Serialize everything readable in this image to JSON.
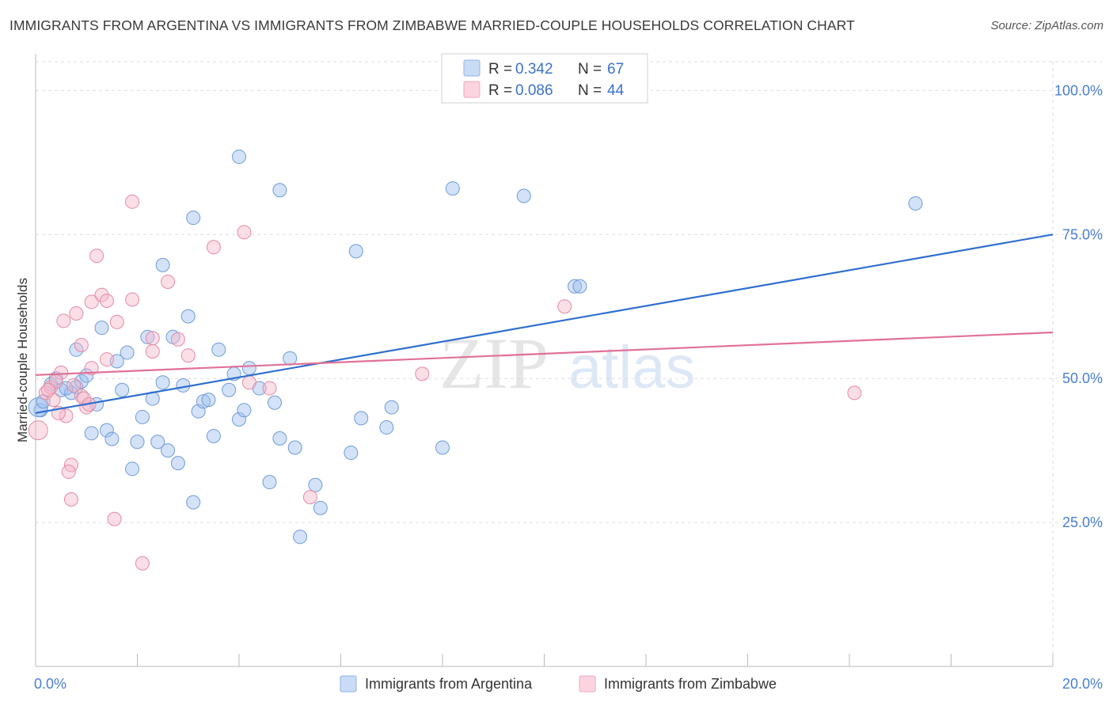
{
  "header": {
    "title": "IMMIGRANTS FROM ARGENTINA VS IMMIGRANTS FROM ZIMBABWE MARRIED-COUPLE HOUSEHOLDS CORRELATION CHART",
    "source": "Source: ZipAtlas.com"
  },
  "watermark": {
    "zip": "ZIP",
    "atlas": "atlas"
  },
  "legend": {
    "rows": [
      {
        "r_label": "R =",
        "r_value": "0.342",
        "n_label": "N =",
        "n_value": "67",
        "color": "#9dbfee"
      },
      {
        "r_label": "R =",
        "r_value": "0.086",
        "n_label": "N =",
        "n_value": "44",
        "color": "#f4b8c9"
      }
    ]
  },
  "chart_data": {
    "type": "scatter",
    "title": "IMMIGRANTS FROM ARGENTINA VS IMMIGRANTS FROM ZIMBABWE MARRIED-COUPLE HOUSEHOLDS CORRELATION CHART",
    "xlabel": "",
    "ylabel": "Married-couple Households",
    "xlim": [
      0,
      20
    ],
    "ylim": [
      0,
      105
    ],
    "x_tick_labels": [
      "0.0%",
      "20.0%"
    ],
    "y_ticks": [
      25,
      50,
      75,
      100
    ],
    "y_tick_labels": [
      "25.0%",
      "50.0%",
      "75.0%",
      "100.0%"
    ],
    "grid": true,
    "legend_position": "top-center",
    "series": [
      {
        "name": "Immigrants from Argentina",
        "color": "#9dbfee",
        "stroke": "#6f9bd8",
        "trend_color": "#2f6fcf",
        "trend": {
          "x": [
            0,
            20
          ],
          "y": [
            44.0,
            75.0
          ]
        },
        "points": [
          [
            0.1,
            44.5
          ],
          [
            0.3,
            49.0
          ],
          [
            0.5,
            48.0
          ],
          [
            0.8,
            48.5
          ],
          [
            0.4,
            50.0
          ],
          [
            0.7,
            47.5
          ],
          [
            0.9,
            49.5
          ],
          [
            1.0,
            50.5
          ],
          [
            0.8,
            55.0
          ],
          [
            1.2,
            45.5
          ],
          [
            1.3,
            58.8
          ],
          [
            1.4,
            41.0
          ],
          [
            1.1,
            40.5
          ],
          [
            1.5,
            39.5
          ],
          [
            1.6,
            53.0
          ],
          [
            1.7,
            48.0
          ],
          [
            1.8,
            54.5
          ],
          [
            1.9,
            34.3
          ],
          [
            2.0,
            39.0
          ],
          [
            2.1,
            43.3
          ],
          [
            2.2,
            57.2
          ],
          [
            2.3,
            46.5
          ],
          [
            2.4,
            39.0
          ],
          [
            2.5,
            49.3
          ],
          [
            2.6,
            37.5
          ],
          [
            2.7,
            57.2
          ],
          [
            2.8,
            35.3
          ],
          [
            2.9,
            48.8
          ],
          [
            3.0,
            60.8
          ],
          [
            3.1,
            28.5
          ],
          [
            3.2,
            44.3
          ],
          [
            3.3,
            46.0
          ],
          [
            3.4,
            46.3
          ],
          [
            3.5,
            40.0
          ],
          [
            3.6,
            55.0
          ],
          [
            3.8,
            48.0
          ],
          [
            3.9,
            50.8
          ],
          [
            4.0,
            42.9
          ],
          [
            4.1,
            44.5
          ],
          [
            4.2,
            51.8
          ],
          [
            4.4,
            48.3
          ],
          [
            4.6,
            32.0
          ],
          [
            4.7,
            45.8
          ],
          [
            4.8,
            39.6
          ],
          [
            5.0,
            53.5
          ],
          [
            5.1,
            38.0
          ],
          [
            5.5,
            31.5
          ],
          [
            5.6,
            27.5
          ],
          [
            5.2,
            22.5
          ],
          [
            6.2,
            37.1
          ],
          [
            6.3,
            72.1
          ],
          [
            6.4,
            43.1
          ],
          [
            6.9,
            41.5
          ],
          [
            7.0,
            45.0
          ],
          [
            8.0,
            38.0
          ],
          [
            4.0,
            88.5
          ],
          [
            4.8,
            82.7
          ],
          [
            8.2,
            83.0
          ],
          [
            9.6,
            81.7
          ],
          [
            2.5,
            69.7
          ],
          [
            3.1,
            77.9
          ],
          [
            10.6,
            66.0
          ],
          [
            10.7,
            66.0
          ],
          [
            17.3,
            80.4
          ],
          [
            0.05,
            45.0
          ],
          [
            0.15,
            46.0
          ],
          [
            0.6,
            48.3
          ]
        ]
      },
      {
        "name": "Immigrants from Zimbabwe",
        "color": "#f4b8c9",
        "stroke": "#e48aa5",
        "trend_color": "#e07196",
        "trend": {
          "x": [
            0,
            20
          ],
          "y": [
            50.6,
            58.0
          ]
        },
        "points": [
          [
            0.05,
            41.0
          ],
          [
            0.2,
            47.5
          ],
          [
            0.3,
            48.5
          ],
          [
            0.35,
            46.3
          ],
          [
            0.5,
            51.0
          ],
          [
            0.4,
            49.5
          ],
          [
            0.6,
            43.5
          ],
          [
            0.55,
            60.0
          ],
          [
            0.8,
            61.3
          ],
          [
            0.9,
            55.8
          ],
          [
            0.9,
            47.0
          ],
          [
            1.0,
            45.0
          ],
          [
            1.1,
            51.8
          ],
          [
            1.1,
            63.3
          ],
          [
            1.2,
            71.3
          ],
          [
            1.3,
            64.5
          ],
          [
            1.4,
            63.5
          ],
          [
            1.4,
            53.3
          ],
          [
            1.6,
            59.8
          ],
          [
            1.9,
            63.7
          ],
          [
            1.9,
            80.7
          ],
          [
            2.3,
            57.0
          ],
          [
            2.3,
            54.7
          ],
          [
            2.6,
            66.8
          ],
          [
            2.8,
            56.8
          ],
          [
            3.0,
            54.0
          ],
          [
            3.5,
            72.8
          ],
          [
            4.1,
            75.4
          ],
          [
            4.2,
            49.3
          ],
          [
            4.6,
            48.3
          ],
          [
            0.7,
            35.0
          ],
          [
            0.65,
            33.8
          ],
          [
            0.7,
            29.0
          ],
          [
            1.55,
            25.6
          ],
          [
            2.1,
            17.9
          ],
          [
            5.4,
            29.4
          ],
          [
            7.6,
            50.8
          ],
          [
            10.4,
            62.5
          ],
          [
            16.1,
            47.5
          ],
          [
            0.25,
            48.0
          ],
          [
            0.45,
            44.0
          ],
          [
            0.95,
            46.5
          ],
          [
            0.75,
            48.8
          ],
          [
            1.05,
            45.5
          ]
        ]
      }
    ]
  },
  "bottom_legend": {
    "items": [
      {
        "label": "Immigrants from Argentina",
        "color": "#9dbfee"
      },
      {
        "label": "Immigrants from Zimbabwe",
        "color": "#f4b8c9"
      }
    ]
  }
}
